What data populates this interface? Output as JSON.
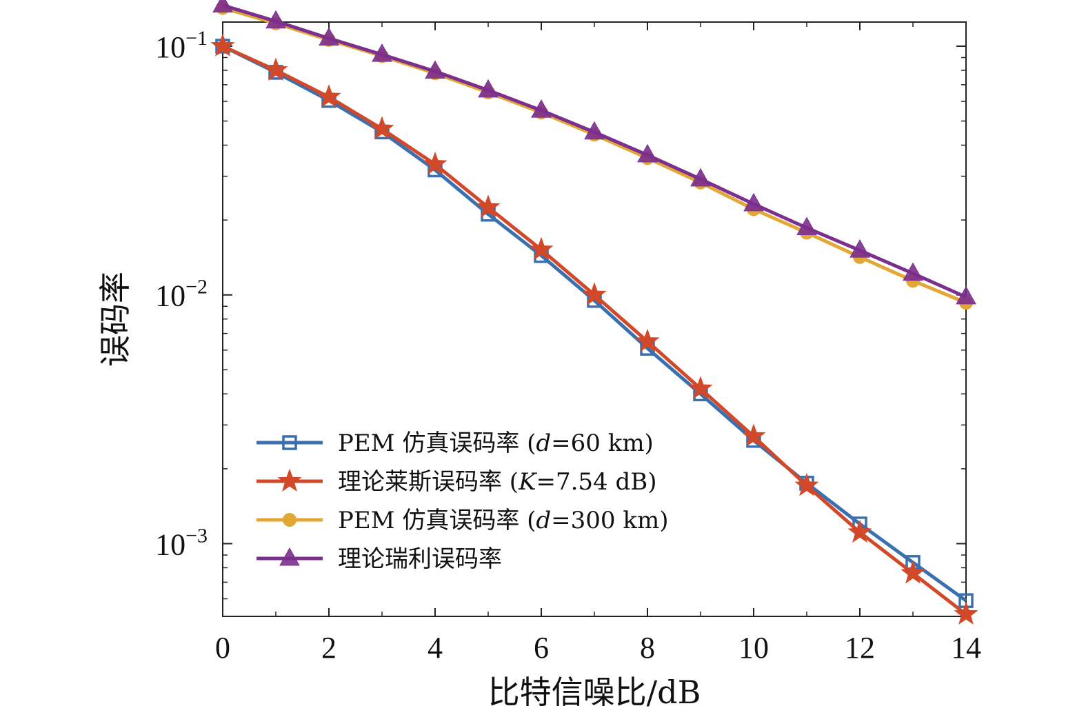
{
  "chart_data": {
    "type": "line",
    "xlabel": "比特信噪比/dB",
    "ylabel": "误码率",
    "yscale": "log",
    "xlim": [
      0,
      14
    ],
    "ylim": [
      0.00051,
      0.125
    ],
    "xticks": [
      0,
      2,
      4,
      6,
      8,
      10,
      12,
      14
    ],
    "xtick_labels": [
      "0",
      "2",
      "4",
      "6",
      "8",
      "10",
      "12",
      "14"
    ],
    "yticks": [
      0.1,
      0.01,
      0.001
    ],
    "ytick_labels": [
      {
        "base": "10",
        "exp": "−1"
      },
      {
        "base": "10",
        "exp": "−2"
      },
      {
        "base": "10",
        "exp": "−3"
      }
    ],
    "grid": false,
    "legend_position": "lower-left",
    "x": [
      0,
      1,
      2,
      3,
      4,
      5,
      6,
      7,
      8,
      9,
      10,
      11,
      12,
      13,
      14
    ],
    "series": [
      {
        "name": "PEM 仿真误码率 (d=60 km)",
        "legend_parts": [
          {
            "text": "PEM 仿真误码率 (",
            "italic": false
          },
          {
            "text": "d",
            "italic": true
          },
          {
            "text": "=60 km)",
            "italic": false
          }
        ],
        "color": "#3a6fb0",
        "marker": "square",
        "values": [
          0.1,
          0.0785,
          0.0605,
          0.0452,
          0.0318,
          0.0211,
          0.0144,
          0.0095,
          0.0061,
          0.004,
          0.0026,
          0.00175,
          0.0012,
          0.00084,
          0.00059
        ]
      },
      {
        "name": "理论莱斯误码率 (K=7.54 dB)",
        "legend_parts": [
          {
            "text": "理论莱斯误码率 (",
            "italic": false
          },
          {
            "text": "K",
            "italic": true
          },
          {
            "text": "=7.54 dB)",
            "italic": false
          }
        ],
        "color": "#d2492a",
        "marker": "star",
        "values": [
          0.1,
          0.08,
          0.0625,
          0.0465,
          0.0335,
          0.0225,
          0.0152,
          0.01,
          0.0065,
          0.0042,
          0.0027,
          0.00171,
          0.00111,
          0.00076,
          0.00052
        ]
      },
      {
        "name": "PEM 仿真误码率 (d=300 km)",
        "legend_parts": [
          {
            "text": "PEM 仿真误码率 (",
            "italic": false
          },
          {
            "text": "d",
            "italic": true
          },
          {
            "text": "=300 km)",
            "italic": false
          }
        ],
        "color": "#e3a735",
        "marker": "circle",
        "values": [
          0.1425,
          0.1235,
          0.106,
          0.0912,
          0.0778,
          0.0652,
          0.0541,
          0.0441,
          0.0355,
          0.0283,
          0.0221,
          0.0178,
          0.0142,
          0.0114,
          0.0093
        ]
      },
      {
        "name": "理论瑞利误码率",
        "legend_parts": [
          {
            "text": "理论瑞利误码率",
            "italic": false
          }
        ],
        "color": "#7b2f8e",
        "marker": "triangle",
        "values": [
          0.146,
          0.126,
          0.1075,
          0.0925,
          0.0792,
          0.0665,
          0.0552,
          0.0451,
          0.0365,
          0.0292,
          0.0232,
          0.0186,
          0.0151,
          0.0122,
          0.0098
        ]
      }
    ]
  }
}
